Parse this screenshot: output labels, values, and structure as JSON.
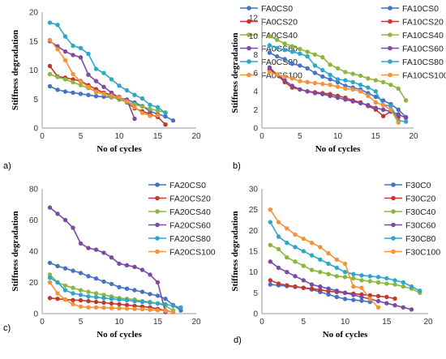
{
  "chart_data": [
    {
      "panel": "a)",
      "type": "line",
      "xlabel": "No of cycles",
      "ylabel": "Stiffness degradation",
      "xlim": [
        0,
        20
      ],
      "ylim": [
        0,
        20
      ],
      "xticks": [
        0,
        5,
        10,
        15,
        20
      ],
      "yticks": [
        0,
        5,
        10,
        15,
        20
      ],
      "legend": "right",
      "series": [
        {
          "name": "FA0CS0",
          "color": "#4472C4",
          "x": [
            1,
            2,
            3,
            4,
            5,
            6,
            7,
            8,
            9,
            10,
            11,
            12,
            13,
            14,
            15,
            16,
            17
          ],
          "y": [
            7.2,
            6.6,
            6.3,
            6.1,
            5.9,
            5.7,
            5.5,
            5.4,
            5.3,
            5.1,
            4.9,
            4.4,
            3.8,
            2.9,
            2.4,
            2.0,
            1.3
          ]
        },
        {
          "name": "FA0CS20",
          "color": "#C0392B",
          "x": [
            1,
            2,
            3,
            4,
            5,
            6,
            7,
            8,
            9,
            10,
            11,
            12,
            13,
            14,
            15,
            16
          ],
          "y": [
            10.7,
            8.9,
            8.7,
            8.4,
            8.1,
            7.4,
            6.7,
            6.1,
            5.7,
            5.4,
            4.4,
            3.4,
            2.9,
            2.4,
            1.9,
            0.6
          ]
        },
        {
          "name": "FA0CS40",
          "color": "#8DB63C",
          "x": [
            1,
            2,
            3,
            4,
            5,
            6,
            7,
            8,
            9,
            10,
            11,
            12,
            13,
            14,
            15,
            16
          ],
          "y": [
            9.3,
            8.8,
            8.4,
            7.9,
            7.4,
            6.9,
            6.3,
            5.9,
            5.4,
            4.9,
            4.5,
            4.1,
            3.7,
            3.3,
            3.0,
            2.7
          ]
        },
        {
          "name": "FA0CS60",
          "color": "#7B4BA1",
          "x": [
            1,
            2,
            3,
            4,
            5,
            6,
            7,
            8,
            9,
            10,
            11,
            12
          ],
          "y": [
            15.0,
            14.1,
            13.2,
            12.6,
            12.2,
            9.2,
            8.1,
            7.1,
            6.1,
            5.2,
            4.9,
            1.6
          ]
        },
        {
          "name": "FA0CS80",
          "color": "#2EA6C9",
          "x": [
            1,
            2,
            3,
            4,
            5,
            6,
            7,
            8,
            9,
            10,
            11,
            12,
            13,
            14,
            15,
            16
          ],
          "y": [
            18.2,
            17.8,
            15.8,
            14.2,
            13.8,
            12.8,
            10.2,
            9.5,
            8.4,
            7.3,
            6.5,
            5.7,
            5.1,
            4.0,
            3.6,
            2.6
          ]
        },
        {
          "name": "FA0CS100",
          "color": "#F5923A",
          "x": [
            1,
            2,
            3,
            4,
            5,
            6,
            7,
            8,
            9,
            10,
            11,
            12,
            13,
            14,
            15
          ],
          "y": [
            15.2,
            13.6,
            11.7,
            9.3,
            8.0,
            7.1,
            6.2,
            5.9,
            5.6,
            5.3,
            4.6,
            3.6,
            2.6,
            2.1,
            2.2
          ]
        }
      ]
    },
    {
      "panel": "b)",
      "type": "line",
      "xlabel": "No of cycles",
      "ylabel": "Stiffness degradation",
      "xlim": [
        0,
        20
      ],
      "ylim": [
        0,
        12
      ],
      "xticks": [
        0,
        5,
        10,
        15,
        20
      ],
      "yticks": [
        0,
        2,
        4,
        6,
        8,
        10,
        12
      ],
      "legend": "right",
      "series": [
        {
          "name": "FA10CS0",
          "color": "#4472C4",
          "x": [
            1,
            2,
            3,
            4,
            5,
            6,
            7,
            8,
            9,
            10,
            11,
            12,
            13,
            14,
            15,
            16,
            17,
            18,
            19
          ],
          "y": [
            8.2,
            7.8,
            7.5,
            7.0,
            6.8,
            6.5,
            6.0,
            5.6,
            5.3,
            5.0,
            4.6,
            4.4,
            4.2,
            3.8,
            3.4,
            3.0,
            2.6,
            2.0,
            1.2
          ]
        },
        {
          "name": "FA10CS20",
          "color": "#C0392B",
          "x": [
            1,
            2,
            3,
            4,
            5,
            6,
            7,
            8,
            9,
            10,
            11,
            12,
            13,
            14,
            15,
            16,
            17,
            18
          ],
          "y": [
            6.4,
            5.8,
            5.0,
            4.4,
            4.2,
            4.0,
            3.9,
            3.8,
            3.7,
            3.5,
            3.3,
            3.0,
            2.8,
            2.4,
            2.0,
            1.3,
            1.8,
            1.2
          ]
        },
        {
          "name": "FA10CS40",
          "color": "#8DB63C",
          "x": [
            1,
            2,
            3,
            4,
            5,
            6,
            7,
            8,
            9,
            10,
            11,
            12,
            13,
            14,
            15,
            16,
            17,
            18,
            19
          ],
          "y": [
            10.0,
            9.6,
            9.2,
            8.9,
            8.6,
            8.3,
            8.0,
            7.7,
            6.9,
            6.5,
            6.1,
            5.9,
            5.7,
            5.4,
            5.2,
            5.0,
            4.7,
            4.3,
            3.0
          ]
        },
        {
          "name": "FA10CS60",
          "color": "#7B4BA1",
          "x": [
            1,
            2,
            3,
            4,
            5,
            6,
            7,
            8,
            9,
            10,
            11,
            12,
            13,
            14,
            15,
            16,
            17,
            18,
            19
          ],
          "y": [
            6.6,
            5.8,
            5.2,
            4.6,
            4.2,
            4.0,
            3.8,
            3.7,
            3.5,
            3.3,
            3.1,
            2.9,
            2.7,
            2.5,
            2.2,
            2.0,
            1.8,
            1.5,
            1.1
          ]
        },
        {
          "name": "FA10CS80",
          "color": "#2EA6C9",
          "x": [
            1,
            2,
            3,
            4,
            5,
            6,
            7,
            8,
            9,
            10,
            11,
            12,
            13,
            14,
            15,
            16,
            17,
            18,
            19
          ],
          "y": [
            9.0,
            8.7,
            8.5,
            8.3,
            8.1,
            7.8,
            6.8,
            6.3,
            5.8,
            5.3,
            5.2,
            5.0,
            4.7,
            4.4,
            4.0,
            2.5,
            2.4,
            0.8,
            0.7
          ]
        },
        {
          "name": "FA10CS100",
          "color": "#F5923A",
          "x": [
            1,
            2,
            3,
            4,
            5,
            6,
            7,
            8,
            9,
            10,
            11,
            12,
            13,
            14,
            15,
            16,
            17,
            18
          ],
          "y": [
            6.1,
            5.8,
            5.6,
            5.4,
            5.1,
            5.0,
            4.9,
            4.8,
            4.7,
            4.5,
            4.3,
            4.2,
            4.0,
            3.5,
            2.8,
            2.5,
            2.0,
            0.6
          ]
        }
      ]
    },
    {
      "panel": "c)",
      "type": "line",
      "xlabel": "No of cycles",
      "ylabel": "Stiffness degradation",
      "xlim": [
        0,
        20
      ],
      "ylim": [
        0,
        80
      ],
      "xticks": [
        0,
        5,
        10,
        15,
        20
      ],
      "yticks": [
        0,
        20,
        40,
        60,
        80
      ],
      "legend": "right",
      "series": [
        {
          "name": "FA20CS0",
          "color": "#4472C4",
          "x": [
            1,
            2,
            3,
            4,
            5,
            6,
            7,
            8,
            9,
            10,
            11,
            12,
            13,
            14,
            15,
            16,
            17,
            18
          ],
          "y": [
            32.5,
            30.5,
            29.0,
            27.5,
            26.0,
            24.0,
            22.5,
            20.5,
            19.0,
            17.0,
            16.0,
            15.0,
            14.0,
            12.5,
            11.5,
            9.5,
            5.5,
            2.0
          ]
        },
        {
          "name": "FA20CS20",
          "color": "#C0392B",
          "x": [
            1,
            2,
            3,
            4,
            5,
            6,
            7,
            8,
            9,
            10,
            11,
            12,
            13,
            14,
            15,
            16,
            17
          ],
          "y": [
            10.0,
            9.5,
            9.0,
            8.7,
            8.5,
            8.0,
            7.5,
            7.0,
            6.5,
            6.0,
            5.5,
            5.0,
            4.5,
            4.0,
            3.0,
            2.0,
            1.0
          ]
        },
        {
          "name": "FA20CS40",
          "color": "#8DB63C",
          "x": [
            1,
            2,
            3,
            4,
            5,
            6,
            7,
            8,
            9,
            10,
            11,
            12,
            13,
            14,
            15,
            16,
            17
          ],
          "y": [
            25.0,
            20.0,
            18.0,
            16.5,
            15.0,
            14.0,
            13.0,
            12.0,
            11.0,
            10.0,
            9.5,
            9.0,
            8.0,
            7.5,
            6.5,
            5.0,
            2.0
          ]
        },
        {
          "name": "FA20CS60",
          "color": "#7B4BA1",
          "x": [
            1,
            2,
            3,
            4,
            5,
            6,
            7,
            8,
            9,
            10,
            11,
            12,
            13,
            14,
            15,
            16
          ],
          "y": [
            68.0,
            64.0,
            60.0,
            55.0,
            45.0,
            42.0,
            41.0,
            39.0,
            36.0,
            32.0,
            31.0,
            30.0,
            28.0,
            25.0,
            20.0,
            1.0
          ]
        },
        {
          "name": "FA20CS80",
          "color": "#2EA6C9",
          "x": [
            1,
            2,
            3,
            4,
            5,
            6,
            7,
            8,
            9,
            10,
            11,
            12,
            13,
            14,
            15,
            16,
            17,
            18
          ],
          "y": [
            23.0,
            20.0,
            15.0,
            13.0,
            12.0,
            11.0,
            10.5,
            10.0,
            9.5,
            9.0,
            8.5,
            8.0,
            7.5,
            7.0,
            6.5,
            6.0,
            5.0,
            4.0
          ]
        },
        {
          "name": "FA20CS100",
          "color": "#F5923A",
          "x": [
            1,
            2,
            3,
            4,
            5,
            6,
            7,
            8,
            9,
            10,
            11,
            12,
            13,
            14,
            15,
            16,
            17
          ],
          "y": [
            20.0,
            13.0,
            9.0,
            6.0,
            4.5,
            4.0,
            4.0,
            3.8,
            3.6,
            3.4,
            3.2,
            3.0,
            2.8,
            2.5,
            2.2,
            1.8,
            1.0
          ]
        }
      ]
    },
    {
      "panel": "d)",
      "type": "line",
      "xlabel": "No of cycles",
      "ylabel": "Stiffness degradation",
      "xlim": [
        0,
        20
      ],
      "ylim": [
        0,
        30
      ],
      "xticks": [
        0,
        5,
        10,
        15,
        20
      ],
      "yticks": [
        0,
        5,
        10,
        15,
        20,
        25,
        30
      ],
      "legend": "right",
      "series": [
        {
          "name": "F30C0",
          "color": "#4472C4",
          "x": [
            1,
            2,
            3,
            4,
            5,
            6,
            7,
            8,
            9,
            10,
            11,
            12,
            13
          ],
          "y": [
            7.0,
            6.8,
            6.6,
            6.4,
            6.2,
            5.8,
            5.2,
            4.6,
            4.0,
            3.5,
            3.3,
            3.1,
            2.8
          ]
        },
        {
          "name": "F30C20",
          "color": "#C0392B",
          "x": [
            1,
            2,
            3,
            4,
            5,
            6,
            7,
            8,
            9,
            10,
            11,
            12,
            13,
            14,
            15,
            16
          ],
          "y": [
            8.0,
            7.2,
            6.8,
            6.5,
            6.2,
            6.0,
            5.7,
            5.4,
            5.2,
            5.0,
            4.8,
            4.6,
            4.4,
            4.2,
            4.0,
            3.6
          ]
        },
        {
          "name": "F30C40",
          "color": "#8DB63C",
          "x": [
            1,
            2,
            3,
            4,
            5,
            6,
            7,
            8,
            9,
            10,
            11,
            12,
            13,
            14,
            15,
            16,
            17,
            18,
            19
          ],
          "y": [
            16.5,
            15.5,
            13.5,
            12.5,
            11.5,
            10.5,
            10.0,
            9.5,
            9.0,
            8.8,
            8.5,
            8.0,
            7.8,
            7.5,
            7.2,
            7.0,
            6.5,
            6.0,
            5.0
          ]
        },
        {
          "name": "F30C60",
          "color": "#7B4BA1",
          "x": [
            1,
            2,
            3,
            4,
            5,
            6,
            7,
            8,
            9,
            10,
            11,
            12,
            13,
            14,
            15,
            16,
            17,
            18
          ],
          "y": [
            12.5,
            11.0,
            10.0,
            9.0,
            8.0,
            7.0,
            6.5,
            6.0,
            5.5,
            5.0,
            4.5,
            4.0,
            3.5,
            3.0,
            2.5,
            2.0,
            1.5,
            1.0
          ]
        },
        {
          "name": "F30C80",
          "color": "#2EA6C9",
          "x": [
            1,
            2,
            3,
            4,
            5,
            6,
            7,
            8,
            9,
            10,
            11,
            12,
            13,
            14,
            15,
            16,
            17,
            18,
            19
          ],
          "y": [
            22.0,
            18.5,
            17.0,
            16.0,
            15.0,
            14.0,
            13.0,
            12.0,
            11.0,
            10.0,
            9.5,
            9.2,
            9.0,
            8.8,
            8.5,
            8.0,
            7.5,
            6.5,
            5.5
          ]
        },
        {
          "name": "F30C100",
          "color": "#F5923A",
          "x": [
            1,
            2,
            3,
            4,
            5,
            6,
            7,
            8,
            9,
            10,
            11,
            12,
            13,
            14
          ],
          "y": [
            25.0,
            22.0,
            20.5,
            19.0,
            18.0,
            17.0,
            16.0,
            14.5,
            13.0,
            12.0,
            6.5,
            6.2,
            3.5,
            1.5
          ]
        }
      ]
    }
  ]
}
